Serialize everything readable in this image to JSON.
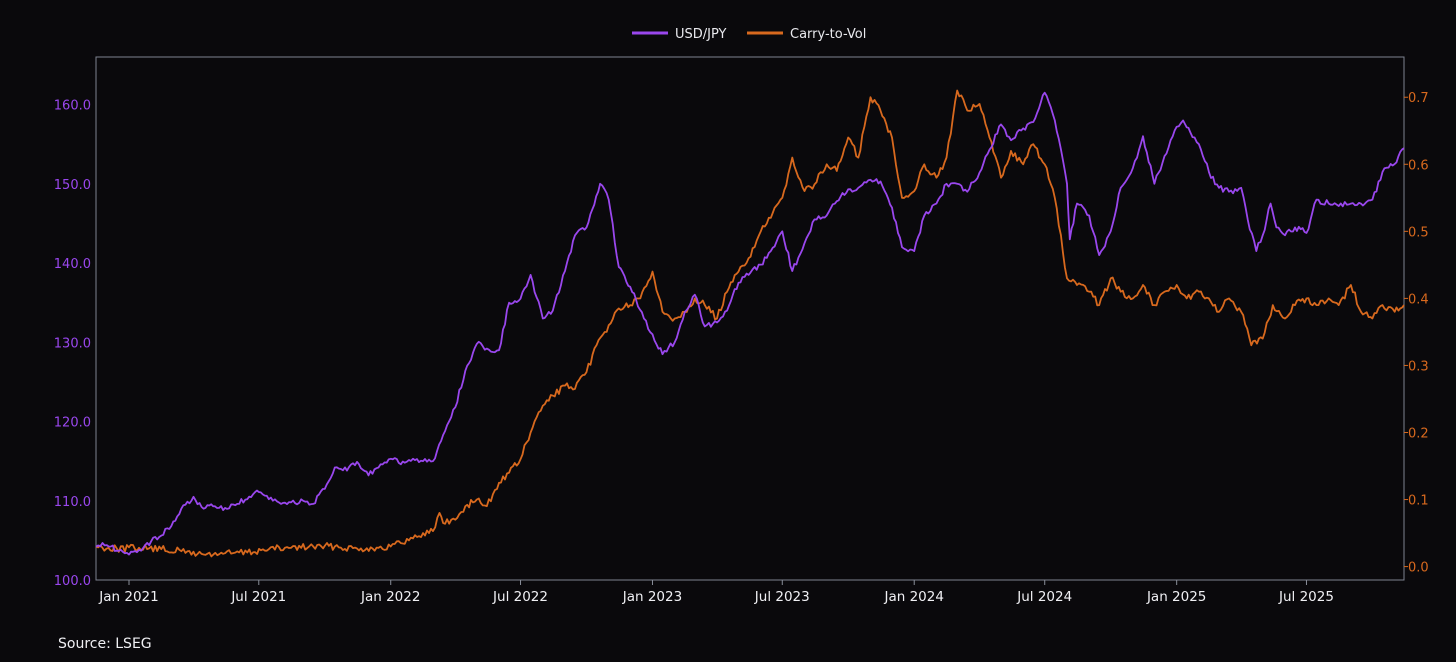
{
  "colors": {
    "background": "#0a090c",
    "usdjpy": "#9a47ee",
    "carry": "#d8691e",
    "axis": "#8a8f9a",
    "text": "#f0f0f4"
  },
  "source": "Source: LSEG",
  "chart_data": {
    "type": "line",
    "grid": false,
    "legend": "top-center",
    "x_ticks": [
      "Jan 2021",
      "Jul 2021",
      "Jan 2022",
      "Jul 2022",
      "Jan 2023",
      "Jul 2023",
      "Jan 2024",
      "Jul 2024",
      "Jan 2025",
      "Jul 2025"
    ],
    "y_left": {
      "ticks": [
        "100.0",
        "110.0",
        "120.0",
        "130.0",
        "140.0",
        "150.0",
        "160.0"
      ],
      "range": [
        100,
        166
      ]
    },
    "y_right": {
      "ticks": [
        "0.0",
        "0.1",
        "0.2",
        "0.3",
        "0.4",
        "0.5",
        "0.6",
        "0.7"
      ],
      "range": [
        -0.02,
        0.76
      ]
    },
    "x_range": [
      "2020-11-16",
      "2025-11-14"
    ],
    "series": [
      {
        "name": "USD/JPY",
        "axis": "left",
        "points": [
          [
            "2020-11-16",
            104.2
          ],
          [
            "2020-12-01",
            104.4
          ],
          [
            "2020-12-15",
            103.7
          ],
          [
            "2021-01-01",
            103.2
          ],
          [
            "2021-01-15",
            103.8
          ],
          [
            "2021-02-01",
            104.9
          ],
          [
            "2021-02-15",
            105.6
          ],
          [
            "2021-03-01",
            106.8
          ],
          [
            "2021-03-15",
            109.0
          ],
          [
            "2021-04-01",
            110.5
          ],
          [
            "2021-04-15",
            109.0
          ],
          [
            "2021-05-01",
            109.3
          ],
          [
            "2021-05-15",
            109.1
          ],
          [
            "2021-06-01",
            109.6
          ],
          [
            "2021-06-15",
            110.2
          ],
          [
            "2021-07-01",
            111.1
          ],
          [
            "2021-07-15",
            110.2
          ],
          [
            "2021-08-01",
            109.6
          ],
          [
            "2021-08-15",
            109.8
          ],
          [
            "2021-09-01",
            110.0
          ],
          [
            "2021-09-15",
            109.6
          ],
          [
            "2021-10-01",
            111.5
          ],
          [
            "2021-10-15",
            114.2
          ],
          [
            "2021-11-01",
            113.8
          ],
          [
            "2021-11-15",
            114.9
          ],
          [
            "2021-12-01",
            113.2
          ],
          [
            "2021-12-15",
            114.2
          ],
          [
            "2022-01-01",
            115.3
          ],
          [
            "2022-01-15",
            114.6
          ],
          [
            "2022-02-01",
            115.3
          ],
          [
            "2022-02-15",
            115.0
          ],
          [
            "2022-03-01",
            115.0
          ],
          [
            "2022-03-15",
            118.3
          ],
          [
            "2022-04-01",
            121.8
          ],
          [
            "2022-04-15",
            126.4
          ],
          [
            "2022-05-01",
            129.8
          ],
          [
            "2022-05-15",
            129.2
          ],
          [
            "2022-06-01",
            129.0
          ],
          [
            "2022-06-15",
            135.0
          ],
          [
            "2022-07-01",
            135.5
          ],
          [
            "2022-07-15",
            138.5
          ],
          [
            "2022-08-01",
            133.0
          ],
          [
            "2022-08-15",
            134.0
          ],
          [
            "2022-09-01",
            139.0
          ],
          [
            "2022-09-15",
            143.5
          ],
          [
            "2022-10-01",
            144.5
          ],
          [
            "2022-10-20",
            150.0
          ],
          [
            "2022-11-01",
            148.0
          ],
          [
            "2022-11-15",
            139.5
          ],
          [
            "2022-12-01",
            137.0
          ],
          [
            "2022-12-20",
            133.0
          ],
          [
            "2023-01-01",
            131.0
          ],
          [
            "2023-01-15",
            128.5
          ],
          [
            "2023-02-01",
            130.0
          ],
          [
            "2023-02-15",
            133.8
          ],
          [
            "2023-03-01",
            136.0
          ],
          [
            "2023-03-15",
            132.0
          ],
          [
            "2023-04-01",
            132.5
          ],
          [
            "2023-04-15",
            134.0
          ],
          [
            "2023-05-01",
            137.5
          ],
          [
            "2023-05-15",
            138.5
          ],
          [
            "2023-06-01",
            139.8
          ],
          [
            "2023-06-15",
            141.5
          ],
          [
            "2023-07-01",
            144.0
          ],
          [
            "2023-07-15",
            139.0
          ],
          [
            "2023-08-01",
            142.5
          ],
          [
            "2023-08-15",
            145.5
          ],
          [
            "2023-09-01",
            146.0
          ],
          [
            "2023-09-15",
            147.8
          ],
          [
            "2023-10-01",
            149.3
          ],
          [
            "2023-10-15",
            149.5
          ],
          [
            "2023-11-01",
            150.5
          ],
          [
            "2023-11-15",
            150.3
          ],
          [
            "2023-12-01",
            147.0
          ],
          [
            "2023-12-15",
            142.0
          ],
          [
            "2024-01-01",
            141.5
          ],
          [
            "2024-01-15",
            146.0
          ],
          [
            "2024-02-01",
            147.5
          ],
          [
            "2024-02-15",
            150.0
          ],
          [
            "2024-03-01",
            150.0
          ],
          [
            "2024-03-15",
            149.0
          ],
          [
            "2024-04-01",
            151.4
          ],
          [
            "2024-04-15",
            154.3
          ],
          [
            "2024-05-01",
            157.5
          ],
          [
            "2024-05-15",
            155.5
          ],
          [
            "2024-06-01",
            157.0
          ],
          [
            "2024-06-15",
            157.8
          ],
          [
            "2024-07-01",
            161.5
          ],
          [
            "2024-07-15",
            158.0
          ],
          [
            "2024-08-01",
            150.0
          ],
          [
            "2024-08-05",
            143.0
          ],
          [
            "2024-08-15",
            147.5
          ],
          [
            "2024-09-01",
            146.0
          ],
          [
            "2024-09-15",
            141.0
          ],
          [
            "2024-10-01",
            144.0
          ],
          [
            "2024-10-15",
            149.5
          ],
          [
            "2024-11-01",
            152.0
          ],
          [
            "2024-11-15",
            156.0
          ],
          [
            "2024-12-01",
            150.0
          ],
          [
            "2024-12-15",
            153.5
          ],
          [
            "2025-01-01",
            157.2
          ],
          [
            "2025-01-10",
            158.0
          ],
          [
            "2025-01-20",
            156.5
          ],
          [
            "2025-02-01",
            155.0
          ],
          [
            "2025-02-15",
            151.5
          ],
          [
            "2025-03-01",
            149.5
          ],
          [
            "2025-03-15",
            149.0
          ],
          [
            "2025-04-01",
            149.5
          ],
          [
            "2025-04-10",
            145.5
          ],
          [
            "2025-04-22",
            141.5
          ],
          [
            "2025-05-01",
            143.5
          ],
          [
            "2025-05-12",
            147.5
          ],
          [
            "2025-05-20",
            144.5
          ],
          [
            "2025-06-01",
            143.5
          ],
          [
            "2025-06-15",
            144.5
          ],
          [
            "2025-07-01",
            143.8
          ],
          [
            "2025-07-15",
            148.0
          ],
          [
            "2025-08-01",
            147.5
          ],
          [
            "2025-08-15",
            147.2
          ],
          [
            "2025-09-01",
            147.5
          ],
          [
            "2025-09-15",
            147.5
          ],
          [
            "2025-10-01",
            148.0
          ],
          [
            "2025-10-15",
            151.5
          ],
          [
            "2025-11-01",
            152.5
          ],
          [
            "2025-11-14",
            154.5
          ]
        ]
      },
      {
        "name": "Carry-to-Vol",
        "axis": "right",
        "points": [
          [
            "2020-11-16",
            0.03
          ],
          [
            "2020-12-15",
            0.027
          ],
          [
            "2021-01-15",
            0.028
          ],
          [
            "2021-02-15",
            0.026
          ],
          [
            "2021-03-15",
            0.023
          ],
          [
            "2021-04-15",
            0.018
          ],
          [
            "2021-05-15",
            0.02
          ],
          [
            "2021-06-15",
            0.021
          ],
          [
            "2021-07-15",
            0.026
          ],
          [
            "2021-08-15",
            0.028
          ],
          [
            "2021-09-15",
            0.03
          ],
          [
            "2021-10-15",
            0.03
          ],
          [
            "2021-11-15",
            0.027
          ],
          [
            "2021-12-15",
            0.028
          ],
          [
            "2022-01-01",
            0.03
          ],
          [
            "2022-01-15",
            0.035
          ],
          [
            "2022-02-01",
            0.042
          ],
          [
            "2022-02-15",
            0.05
          ],
          [
            "2022-03-01",
            0.053
          ],
          [
            "2022-03-10",
            0.08
          ],
          [
            "2022-03-15",
            0.065
          ],
          [
            "2022-04-01",
            0.07
          ],
          [
            "2022-04-15",
            0.09
          ],
          [
            "2022-05-01",
            0.1
          ],
          [
            "2022-05-15",
            0.09
          ],
          [
            "2022-06-01",
            0.125
          ],
          [
            "2022-06-15",
            0.14
          ],
          [
            "2022-07-01",
            0.16
          ],
          [
            "2022-07-15",
            0.2
          ],
          [
            "2022-08-01",
            0.24
          ],
          [
            "2022-08-15",
            0.255
          ],
          [
            "2022-09-01",
            0.27
          ],
          [
            "2022-09-15",
            0.265
          ],
          [
            "2022-10-01",
            0.29
          ],
          [
            "2022-10-15",
            0.33
          ],
          [
            "2022-11-01",
            0.36
          ],
          [
            "2022-11-15",
            0.385
          ],
          [
            "2022-12-01",
            0.39
          ],
          [
            "2022-12-15",
            0.4
          ],
          [
            "2023-01-01",
            0.44
          ],
          [
            "2023-01-15",
            0.38
          ],
          [
            "2023-02-01",
            0.37
          ],
          [
            "2023-02-15",
            0.38
          ],
          [
            "2023-03-01",
            0.4
          ],
          [
            "2023-03-15",
            0.39
          ],
          [
            "2023-04-01",
            0.37
          ],
          [
            "2023-04-15",
            0.41
          ],
          [
            "2023-05-01",
            0.44
          ],
          [
            "2023-05-15",
            0.46
          ],
          [
            "2023-06-01",
            0.5
          ],
          [
            "2023-06-15",
            0.52
          ],
          [
            "2023-07-01",
            0.55
          ],
          [
            "2023-07-15",
            0.61
          ],
          [
            "2023-08-01",
            0.56
          ],
          [
            "2023-08-15",
            0.57
          ],
          [
            "2023-09-01",
            0.6
          ],
          [
            "2023-09-15",
            0.59
          ],
          [
            "2023-10-01",
            0.64
          ],
          [
            "2023-10-15",
            0.61
          ],
          [
            "2023-11-01",
            0.7
          ],
          [
            "2023-11-15",
            0.68
          ],
          [
            "2023-12-01",
            0.64
          ],
          [
            "2023-12-15",
            0.55
          ],
          [
            "2024-01-01",
            0.56
          ],
          [
            "2024-01-15",
            0.6
          ],
          [
            "2024-02-01",
            0.58
          ],
          [
            "2024-02-15",
            0.61
          ],
          [
            "2024-03-01",
            0.71
          ],
          [
            "2024-03-15",
            0.68
          ],
          [
            "2024-04-01",
            0.69
          ],
          [
            "2024-04-15",
            0.64
          ],
          [
            "2024-05-01",
            0.58
          ],
          [
            "2024-05-15",
            0.62
          ],
          [
            "2024-06-01",
            0.6
          ],
          [
            "2024-06-15",
            0.63
          ],
          [
            "2024-07-01",
            0.6
          ],
          [
            "2024-07-15",
            0.55
          ],
          [
            "2024-08-01",
            0.43
          ],
          [
            "2024-08-15",
            0.42
          ],
          [
            "2024-09-01",
            0.41
          ],
          [
            "2024-09-15",
            0.39
          ],
          [
            "2024-10-01",
            0.43
          ],
          [
            "2024-10-15",
            0.41
          ],
          [
            "2024-11-01",
            0.4
          ],
          [
            "2024-11-15",
            0.42
          ],
          [
            "2024-12-01",
            0.39
          ],
          [
            "2024-12-15",
            0.41
          ],
          [
            "2025-01-01",
            0.42
          ],
          [
            "2025-01-15",
            0.4
          ],
          [
            "2025-02-01",
            0.41
          ],
          [
            "2025-02-15",
            0.4
          ],
          [
            "2025-03-01",
            0.38
          ],
          [
            "2025-03-15",
            0.4
          ],
          [
            "2025-04-01",
            0.38
          ],
          [
            "2025-04-15",
            0.33
          ],
          [
            "2025-05-01",
            0.34
          ],
          [
            "2025-05-15",
            0.39
          ],
          [
            "2025-06-01",
            0.37
          ],
          [
            "2025-06-15",
            0.39
          ],
          [
            "2025-07-01",
            0.4
          ],
          [
            "2025-07-15",
            0.39
          ],
          [
            "2025-08-01",
            0.4
          ],
          [
            "2025-08-15",
            0.39
          ],
          [
            "2025-09-01",
            0.42
          ],
          [
            "2025-09-15",
            0.38
          ],
          [
            "2025-10-01",
            0.37
          ],
          [
            "2025-10-15",
            0.39
          ],
          [
            "2025-11-01",
            0.38
          ],
          [
            "2025-11-14",
            0.39
          ]
        ]
      }
    ]
  }
}
